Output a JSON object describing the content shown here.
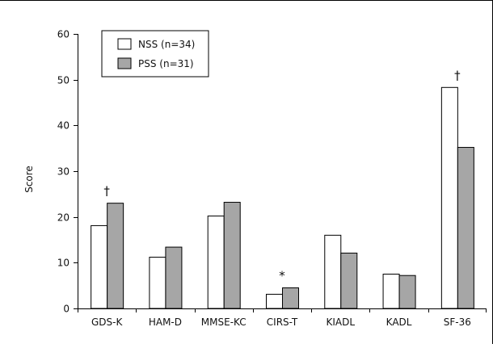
{
  "chart_data": {
    "type": "bar",
    "title": "",
    "xlabel": "",
    "ylabel": "Score",
    "ylim": [
      0,
      60
    ],
    "yticks": [
      0,
      10,
      20,
      30,
      40,
      50,
      60
    ],
    "grid": false,
    "legend_position": "top-left",
    "categories": [
      "GDS-K",
      "HAM-D",
      "MMSE-KC",
      "CIRS-T",
      "KIADL",
      "KADL",
      "SF-36"
    ],
    "series": [
      {
        "name": "NSS (n=34)",
        "color": "#ffffff",
        "values": [
          18.1,
          11.2,
          20.2,
          3.1,
          16.0,
          7.5,
          48.3
        ]
      },
      {
        "name": "PSS (n=31)",
        "color": "#a6a6a6",
        "values": [
          23.0,
          13.4,
          23.2,
          4.5,
          12.1,
          7.2,
          35.2
        ]
      }
    ],
    "annotations": [
      {
        "category": "GDS-K",
        "text": "†"
      },
      {
        "category": "CIRS-T",
        "text": "*"
      },
      {
        "category": "SF-36",
        "text": "†"
      }
    ]
  }
}
